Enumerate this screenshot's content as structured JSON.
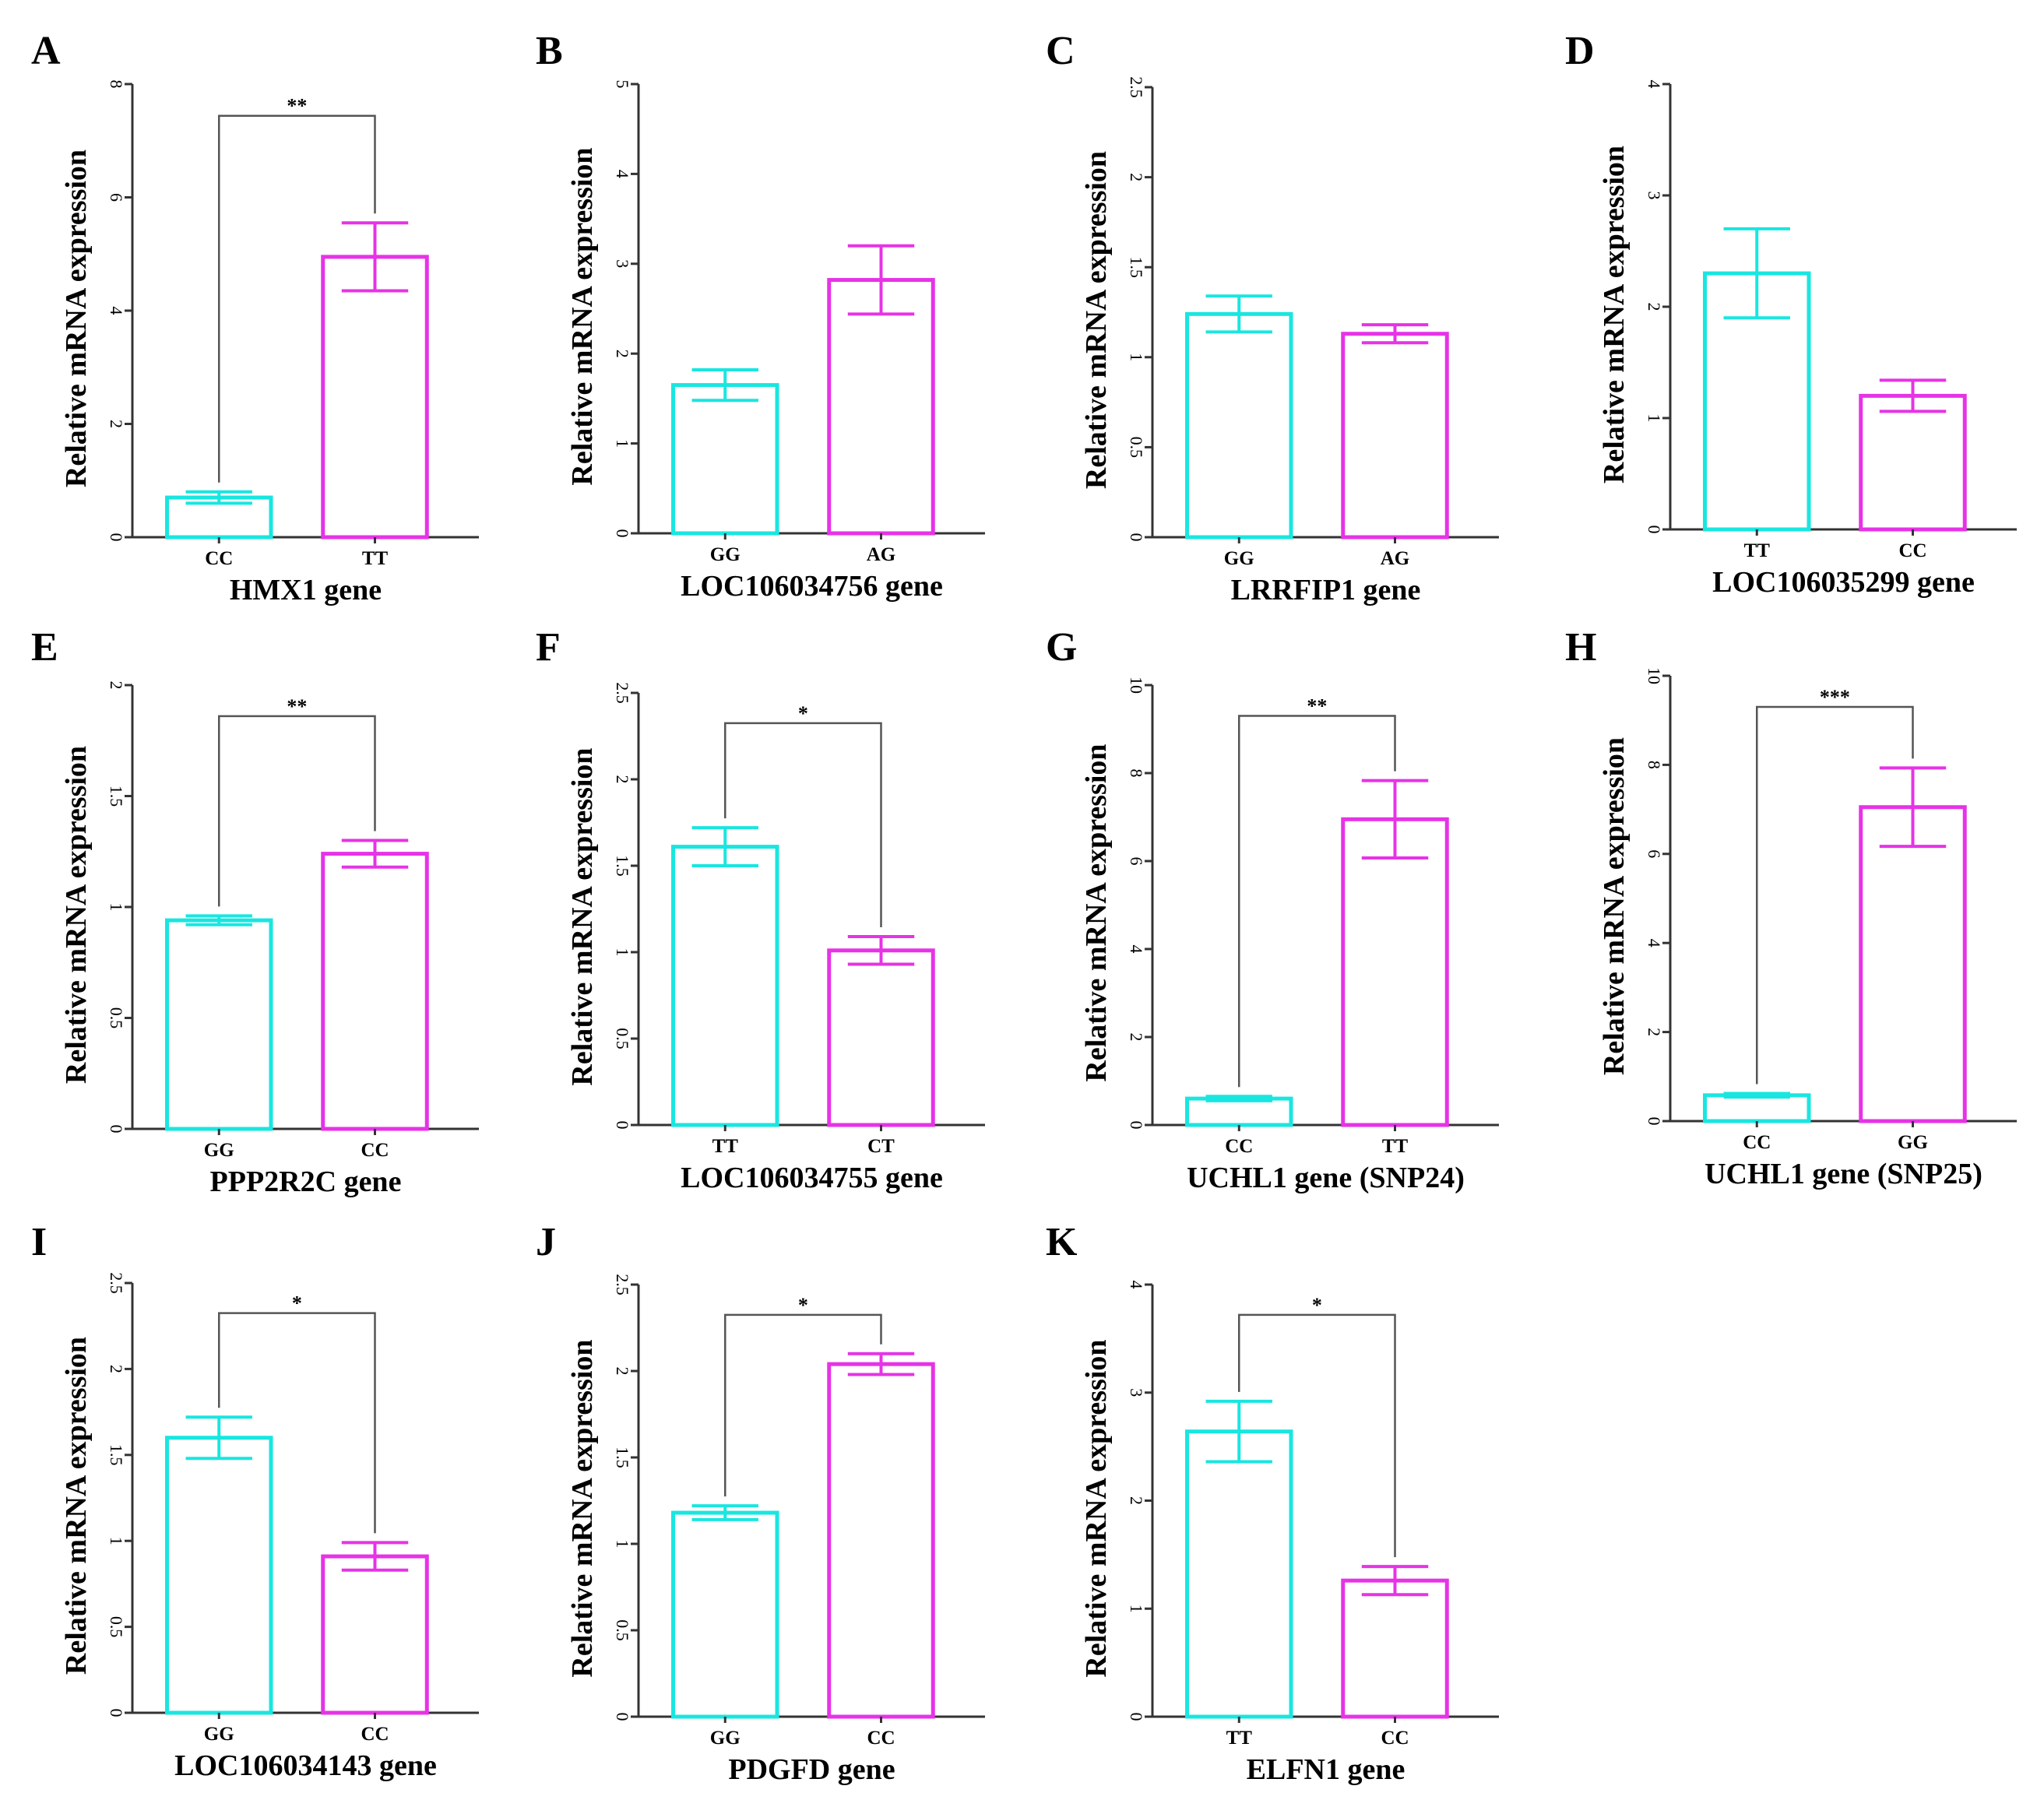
{
  "colors": {
    "genotype_a": "#19e6e0",
    "genotype_b": "#e633e6",
    "axis": "#333333",
    "bracket": "#555555"
  },
  "chart_data": [
    {
      "panel": "A",
      "type": "bar",
      "title": "",
      "xlabel": "HMX1 gene",
      "ylabel": "Relative mRNA expression",
      "categories": [
        "CC",
        "TT"
      ],
      "values": [
        0.7,
        4.95
      ],
      "errors": [
        0.1,
        0.6
      ],
      "ylim": [
        0,
        8
      ],
      "yticks": [
        "0",
        "2",
        "4",
        "6",
        "8"
      ],
      "significance": "**"
    },
    {
      "panel": "B",
      "type": "bar",
      "title": "",
      "xlabel": "LOC106034756 gene",
      "ylabel": "Relative mRNA expression",
      "categories": [
        "GG",
        "AG"
      ],
      "values": [
        1.65,
        2.82
      ],
      "errors": [
        0.17,
        0.38
      ],
      "ylim": [
        0,
        5
      ],
      "yticks": [
        "0",
        "1",
        "2",
        "3",
        "4",
        "5"
      ],
      "significance": ""
    },
    {
      "panel": "C",
      "type": "bar",
      "title": "",
      "xlabel": "LRRFIP1 gene",
      "ylabel": "Relative mRNA expression",
      "categories": [
        "GG",
        "AG"
      ],
      "values": [
        1.24,
        1.13
      ],
      "errors": [
        0.1,
        0.05
      ],
      "ylim": [
        0,
        2.5
      ],
      "yticks": [
        "0",
        "0.5",
        "1",
        "1.5",
        "2",
        "2.5"
      ],
      "significance": ""
    },
    {
      "panel": "D",
      "type": "bar",
      "title": "",
      "xlabel": "LOC106035299 gene",
      "ylabel": "Relative mRNA expression",
      "categories": [
        "TT",
        "CC"
      ],
      "values": [
        2.3,
        1.2
      ],
      "errors": [
        0.4,
        0.14
      ],
      "ylim": [
        0,
        4
      ],
      "yticks": [
        "0",
        "1",
        "2",
        "3",
        "4"
      ],
      "significance": ""
    },
    {
      "panel": "E",
      "type": "bar",
      "title": "",
      "xlabel": "PPP2R2C gene",
      "ylabel": "Relative mRNA expression",
      "categories": [
        "GG",
        "CC"
      ],
      "values": [
        0.94,
        1.24
      ],
      "errors": [
        0.02,
        0.06
      ],
      "ylim": [
        0,
        2
      ],
      "yticks": [
        "0",
        "0.5",
        "1",
        "1.5",
        "2"
      ],
      "significance": "**"
    },
    {
      "panel": "F",
      "type": "bar",
      "title": "",
      "xlabel": "LOC106034755 gene",
      "ylabel": "Relative mRNA expression",
      "categories": [
        "TT",
        "CT"
      ],
      "values": [
        1.61,
        1.01
      ],
      "errors": [
        0.11,
        0.08
      ],
      "ylim": [
        0,
        2.5
      ],
      "yticks": [
        "0",
        "0.5",
        "1",
        "1.5",
        "2",
        "2.5"
      ],
      "significance": "*"
    },
    {
      "panel": "G",
      "type": "bar",
      "title": "",
      "xlabel": "UCHL1 gene (SNP24)",
      "ylabel": "Relative mRNA expression",
      "categories": [
        "CC",
        "TT"
      ],
      "values": [
        0.6,
        6.95
      ],
      "errors": [
        0.05,
        0.88
      ],
      "ylim": [
        0,
        10
      ],
      "yticks": [
        "0",
        "2",
        "4",
        "6",
        "8",
        "10"
      ],
      "significance": "**"
    },
    {
      "panel": "H",
      "type": "bar",
      "title": "",
      "xlabel": "UCHL1 gene (SNP25)",
      "ylabel": "Relative mRNA expression",
      "categories": [
        "CC",
        "GG"
      ],
      "values": [
        0.58,
        7.05
      ],
      "errors": [
        0.04,
        0.88
      ],
      "ylim": [
        0,
        10
      ],
      "yticks": [
        "0",
        "2",
        "4",
        "6",
        "8",
        "10"
      ],
      "significance": "***"
    },
    {
      "panel": "I",
      "type": "bar",
      "title": "",
      "xlabel": "LOC106034143 gene",
      "ylabel": "Relative mRNA expression",
      "categories": [
        "GG",
        "CC"
      ],
      "values": [
        1.6,
        0.91
      ],
      "errors": [
        0.12,
        0.08
      ],
      "ylim": [
        0,
        2.5
      ],
      "yticks": [
        "0",
        "0.5",
        "1",
        "1.5",
        "2",
        "2.5"
      ],
      "significance": "*"
    },
    {
      "panel": "J",
      "type": "bar",
      "title": "",
      "xlabel": "PDGFD gene",
      "ylabel": "Relative mRNA expression",
      "categories": [
        "GG",
        "CC"
      ],
      "values": [
        1.18,
        2.04
      ],
      "errors": [
        0.04,
        0.06
      ],
      "ylim": [
        0,
        2.5
      ],
      "yticks": [
        "0",
        "0.5",
        "1",
        "1.5",
        "2",
        "2.5"
      ],
      "significance": "*"
    },
    {
      "panel": "K",
      "type": "bar",
      "title": "",
      "xlabel": "ELFN1 gene",
      "ylabel": "Relative mRNA expression",
      "categories": [
        "TT",
        "CC"
      ],
      "values": [
        2.64,
        1.26
      ],
      "errors": [
        0.28,
        0.13
      ],
      "ylim": [
        0,
        4
      ],
      "yticks": [
        "0",
        "1",
        "2",
        "3",
        "4"
      ],
      "significance": "*"
    }
  ]
}
